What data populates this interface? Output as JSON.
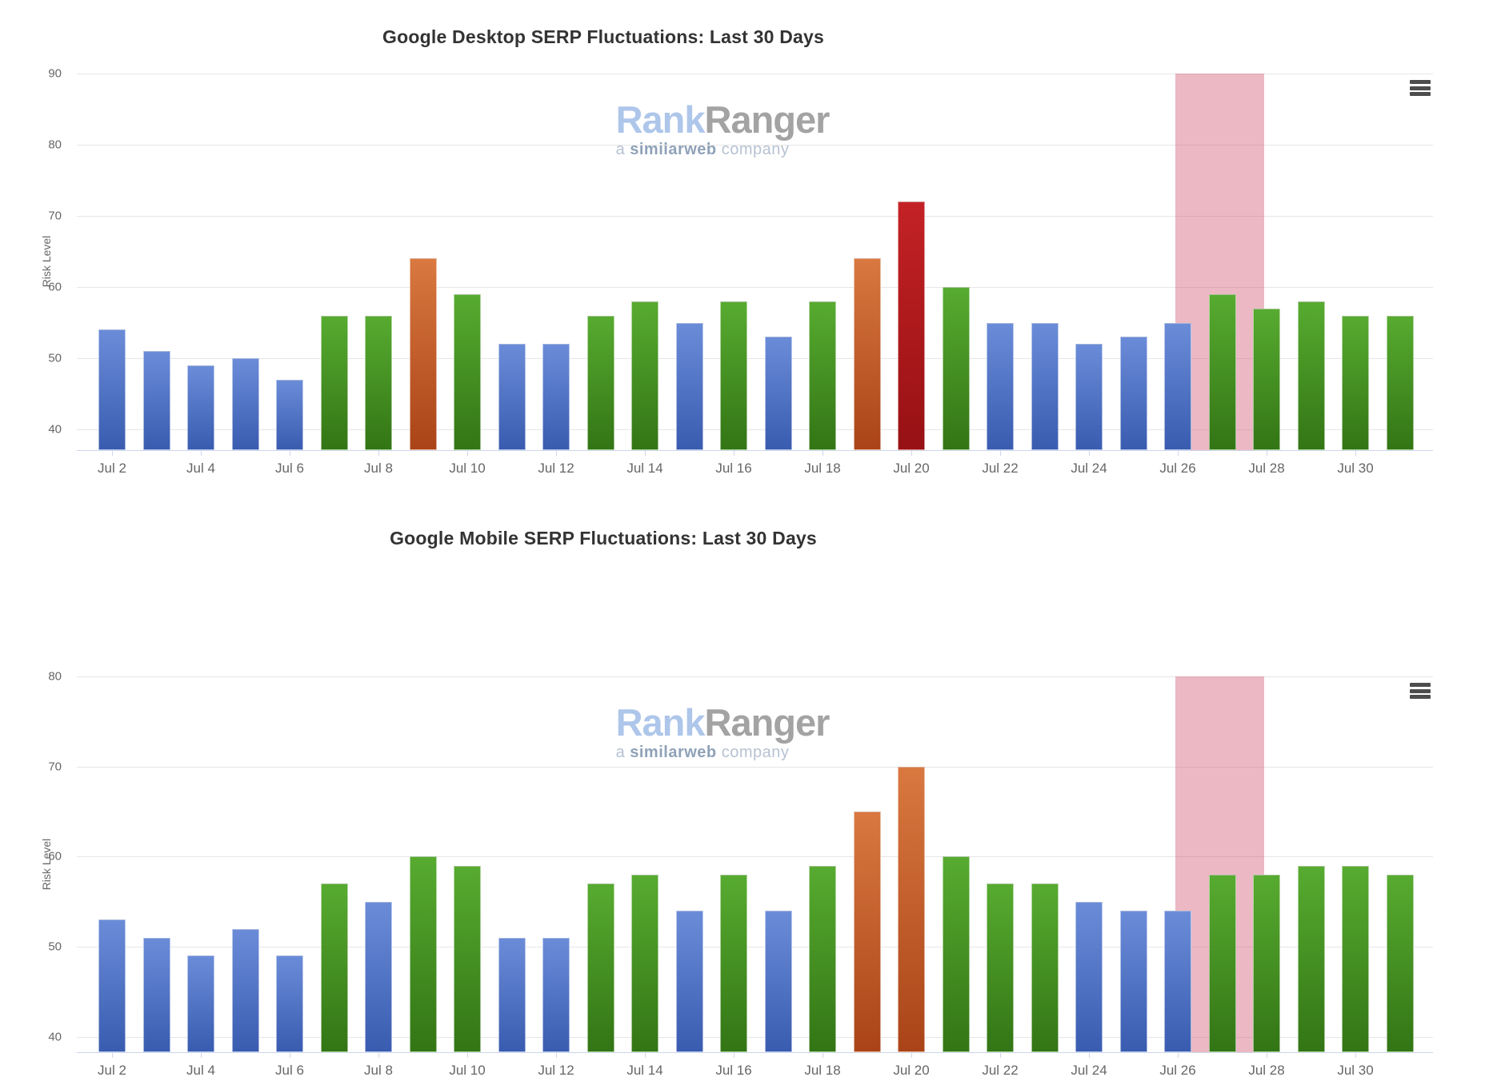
{
  "watermark": {
    "rank": "Rank",
    "ranger": "Ranger",
    "sub_prefix": "a ",
    "sub_brand": "similarweb",
    "sub_suffix": " company"
  },
  "palette": {
    "blue": [
      "#6a8cd8",
      "#3a5cb0"
    ],
    "green": [
      "#57ab30",
      "#337515"
    ],
    "orange": [
      "#d97840",
      "#aa4418"
    ],
    "red": [
      "#c32225",
      "#971114"
    ],
    "band": "rgba(208,85,112,0.42)",
    "gridline": "#e6e6e6",
    "axisline": "#ccd6eb",
    "tick_text": "#666666",
    "title_text": "#333333"
  },
  "chart_data": [
    {
      "type": "bar",
      "title": "Google Desktop SERP Fluctuations: Last 30 Days",
      "xlabel": "",
      "ylabel": "Risk Level",
      "ylim": [
        37,
        90
      ],
      "yticks": [
        90,
        80,
        70,
        60,
        50,
        40
      ],
      "grid": true,
      "legend": false,
      "categories": [
        "Jul 2",
        "Jul 3",
        "Jul 4",
        "Jul 5",
        "Jul 6",
        "Jul 7",
        "Jul 8",
        "Jul 9",
        "Jul 10",
        "Jul 11",
        "Jul 12",
        "Jul 13",
        "Jul 14",
        "Jul 15",
        "Jul 16",
        "Jul 17",
        "Jul 18",
        "Jul 19",
        "Jul 20",
        "Jul 21",
        "Jul 22",
        "Jul 23",
        "Jul 24",
        "Jul 25",
        "Jul 26",
        "Jul 27",
        "Jul 28",
        "Jul 29",
        "Jul 30",
        "Jul 31"
      ],
      "xticks_shown": [
        "Jul 2",
        "Jul 4",
        "Jul 6",
        "Jul 8",
        "Jul 10",
        "Jul 12",
        "Jul 14",
        "Jul 16",
        "Jul 18",
        "Jul 20",
        "Jul 22",
        "Jul 24",
        "Jul 26",
        "Jul 28",
        "Jul 30"
      ],
      "values": [
        54,
        51,
        49,
        50,
        47,
        56,
        56,
        64,
        59,
        52,
        52,
        56,
        58,
        55,
        58,
        53,
        58,
        64,
        72,
        60,
        55,
        55,
        52,
        53,
        55,
        59,
        57,
        58,
        56,
        56
      ],
      "colors": [
        "blue",
        "blue",
        "blue",
        "blue",
        "blue",
        "green",
        "green",
        "orange",
        "green",
        "blue",
        "blue",
        "green",
        "green",
        "blue",
        "green",
        "blue",
        "green",
        "orange",
        "red",
        "green",
        "blue",
        "blue",
        "blue",
        "blue",
        "blue",
        "green",
        "green",
        "green",
        "green",
        "green"
      ],
      "highlight_band": {
        "from": "Jul 26",
        "to": "Jul 28"
      }
    },
    {
      "type": "bar",
      "title": "Google Mobile SERP Fluctuations: Last 30 Days",
      "xlabel": "",
      "ylabel": "Risk Level",
      "ylim": [
        38,
        80
      ],
      "yticks": [
        80,
        70,
        60,
        50,
        40
      ],
      "grid": true,
      "legend": false,
      "categories": [
        "Jul 2",
        "Jul 3",
        "Jul 4",
        "Jul 5",
        "Jul 6",
        "Jul 7",
        "Jul 8",
        "Jul 9",
        "Jul 10",
        "Jul 11",
        "Jul 12",
        "Jul 13",
        "Jul 14",
        "Jul 15",
        "Jul 16",
        "Jul 17",
        "Jul 18",
        "Jul 19",
        "Jul 20",
        "Jul 21",
        "Jul 22",
        "Jul 23",
        "Jul 24",
        "Jul 25",
        "Jul 26",
        "Jul 27",
        "Jul 28",
        "Jul 29",
        "Jul 30",
        "Jul 31"
      ],
      "xticks_shown": [
        "Jul 2",
        "Jul 4",
        "Jul 6",
        "Jul 8",
        "Jul 10",
        "Jul 12",
        "Jul 14",
        "Jul 16",
        "Jul 18",
        "Jul 20",
        "Jul 22",
        "Jul 24",
        "Jul 26",
        "Jul 28",
        "Jul 30"
      ],
      "values": [
        53,
        51,
        49,
        52,
        49,
        57,
        55,
        60,
        59,
        51,
        51,
        57,
        58,
        54,
        58,
        54,
        59,
        65,
        70,
        60,
        57,
        57,
        55,
        54,
        54,
        58,
        58,
        59,
        59,
        58
      ],
      "colors": [
        "blue",
        "blue",
        "blue",
        "blue",
        "blue",
        "green",
        "blue",
        "green",
        "green",
        "blue",
        "blue",
        "green",
        "green",
        "blue",
        "green",
        "blue",
        "green",
        "orange",
        "orange",
        "green",
        "green",
        "green",
        "blue",
        "blue",
        "blue",
        "green",
        "green",
        "green",
        "green",
        "green"
      ],
      "highlight_band": {
        "from": "Jul 26",
        "to": "Jul 28"
      }
    }
  ]
}
